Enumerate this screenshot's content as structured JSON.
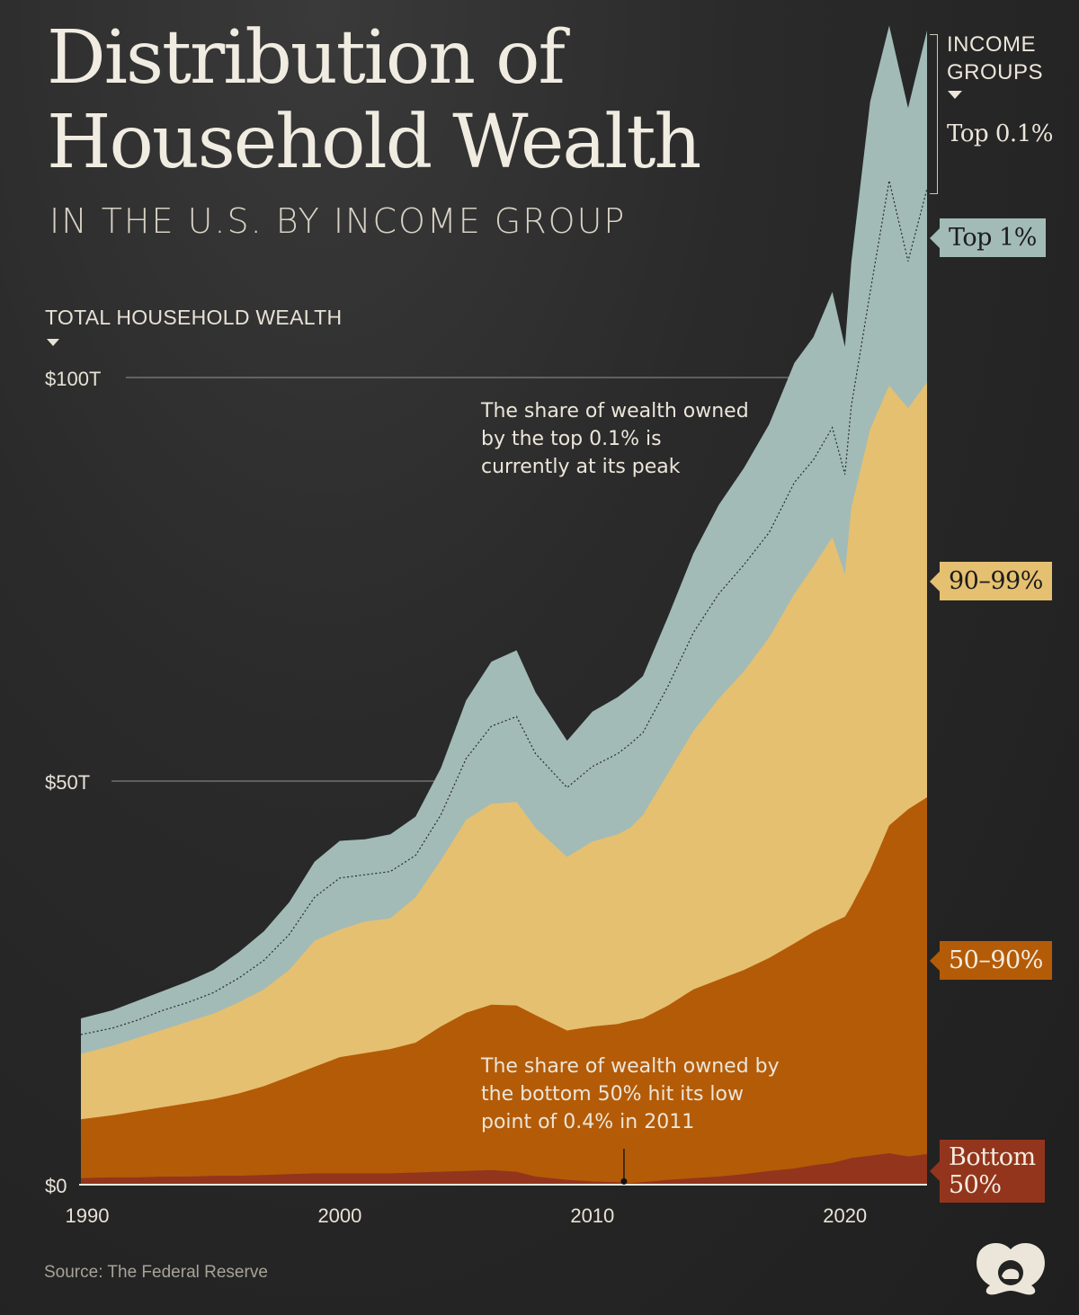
{
  "header": {
    "title_line1": "Distribution of",
    "title_line2": "Household Wealth",
    "subtitle": "IN THE U.S. BY INCOME GROUP"
  },
  "legend_header": {
    "line1": "INCOME",
    "line2": "GROUPS",
    "top01_label": "Top 0.1%"
  },
  "group_tags": {
    "top1": "Top 1%",
    "p90_99": "90–99%",
    "p50_90": "50–90%",
    "bottom50_line1": "Bottom",
    "bottom50_line2": "50%"
  },
  "annotations": {
    "top": "The share of wealth owned by the top 0.1% is currently at its peak",
    "bottom": "The share of wealth owned by the bottom 50% hit its low point of 0.4% in 2011"
  },
  "source": "Source: The Federal Reserve",
  "colors": {
    "background": "#232323",
    "top1": "#a2bbb6",
    "p90_99": "#e5c071",
    "p50_90": "#b45b07",
    "bottom50": "#93351c",
    "text": "#ece6da"
  },
  "logo_icon": "visual-capitalist-logo-icon",
  "chart_data": {
    "type": "area",
    "stacked": true,
    "ylabel": "TOTAL HOUSEHOLD WEALTH",
    "xlabel": "",
    "yticks": [
      {
        "value": 0,
        "label": "$0"
      },
      {
        "value": 50,
        "label": "$50T"
      },
      {
        "value": 100,
        "label": "$100T"
      }
    ],
    "xticks": [
      {
        "value": 1990,
        "label": "1990"
      },
      {
        "value": 2000,
        "label": "2000"
      },
      {
        "value": 2010,
        "label": "2010"
      },
      {
        "value": 2020,
        "label": "2020"
      }
    ],
    "ylim": [
      0,
      145
    ],
    "xlim": [
      1989.75,
      2023.25
    ],
    "units": "trillion USD, cumulative stacked totals",
    "x": [
      1989.75,
      1991,
      1992,
      1993,
      1994,
      1995,
      1996,
      1997,
      1998,
      1999,
      2000,
      2001,
      2002,
      2003,
      2004,
      2005,
      2006,
      2007,
      2007.75,
      2009,
      2010,
      2011,
      2011.5,
      2012,
      2013,
      2014,
      2015,
      2016,
      2017,
      2018,
      2018.75,
      2019.5,
      2020,
      2020.25,
      2021,
      2021.75,
      2022.5,
      2023.25
    ],
    "series": [
      {
        "name": "Bottom 50%",
        "values": [
          0.8,
          0.9,
          0.9,
          1.0,
          1.0,
          1.1,
          1.1,
          1.2,
          1.3,
          1.4,
          1.4,
          1.4,
          1.4,
          1.5,
          1.6,
          1.7,
          1.8,
          1.6,
          1.0,
          0.6,
          0.4,
          0.3,
          0.2,
          0.3,
          0.6,
          0.8,
          1.0,
          1.3,
          1.7,
          2.0,
          2.4,
          2.7,
          3.1,
          3.3,
          3.6,
          3.9,
          3.5,
          3.8
        ]
      },
      {
        "name": "50–90%",
        "values": [
          8.1,
          8.6,
          9.1,
          9.6,
          10.1,
          10.6,
          11.3,
          12.2,
          13.4,
          14.6,
          15.8,
          16.3,
          16.8,
          17.6,
          19.6,
          21.3,
          22.3,
          22.2,
          21.0,
          19.1,
          19.6,
          19.9,
          20.3,
          20.6,
          22.2,
          24.2,
          25.4,
          26.6,
          28.1,
          29.9,
          31.3,
          32.5,
          33.2,
          34.5,
          39.0,
          44.5,
          46.5,
          48.0
        ]
      },
      {
        "name": "90–99%",
        "values": [
          16.2,
          17.2,
          18.2,
          19.2,
          20.2,
          21.2,
          22.6,
          24.2,
          26.6,
          30.2,
          31.6,
          32.6,
          33.0,
          35.6,
          40.2,
          45.2,
          47.2,
          47.4,
          44.2,
          40.6,
          42.5,
          43.4,
          44.2,
          45.8,
          51.0,
          56.2,
          60.2,
          63.6,
          67.8,
          73.2,
          76.6,
          80.2,
          75.6,
          83.8,
          93.6,
          99.0,
          96.2,
          99.4
        ]
      },
      {
        "name": "Top 1%",
        "values": [
          20.6,
          21.6,
          22.8,
          24.0,
          25.2,
          26.6,
          28.8,
          31.4,
          35.0,
          40.0,
          42.6,
          42.8,
          43.4,
          45.6,
          51.6,
          60.0,
          64.8,
          66.2,
          61.0,
          55.0,
          58.6,
          60.4,
          61.6,
          63.0,
          70.4,
          78.2,
          84.2,
          88.8,
          94.2,
          101.8,
          105.0,
          110.6,
          103.8,
          114.2,
          134.2,
          143.6,
          133.4,
          143.0
        ]
      }
    ],
    "top01_threshold_line": {
      "name": "Top 0.1%",
      "style": "dotted",
      "values": [
        18.6,
        19.4,
        20.4,
        21.6,
        22.6,
        23.8,
        25.6,
        27.8,
        31.0,
        35.6,
        38.0,
        38.4,
        38.8,
        40.8,
        45.8,
        52.8,
        56.8,
        58.0,
        53.4,
        49.2,
        51.8,
        53.4,
        54.6,
        56.0,
        61.8,
        68.4,
        73.2,
        76.8,
        80.8,
        87.0,
        89.8,
        93.8,
        88.0,
        96.4,
        110.6,
        124.4,
        114.4,
        123.4
      ]
    },
    "annotation_points": [
      {
        "x": 2011.25,
        "y": 0.4,
        "label": "2011 low point 0.4%"
      }
    ]
  }
}
